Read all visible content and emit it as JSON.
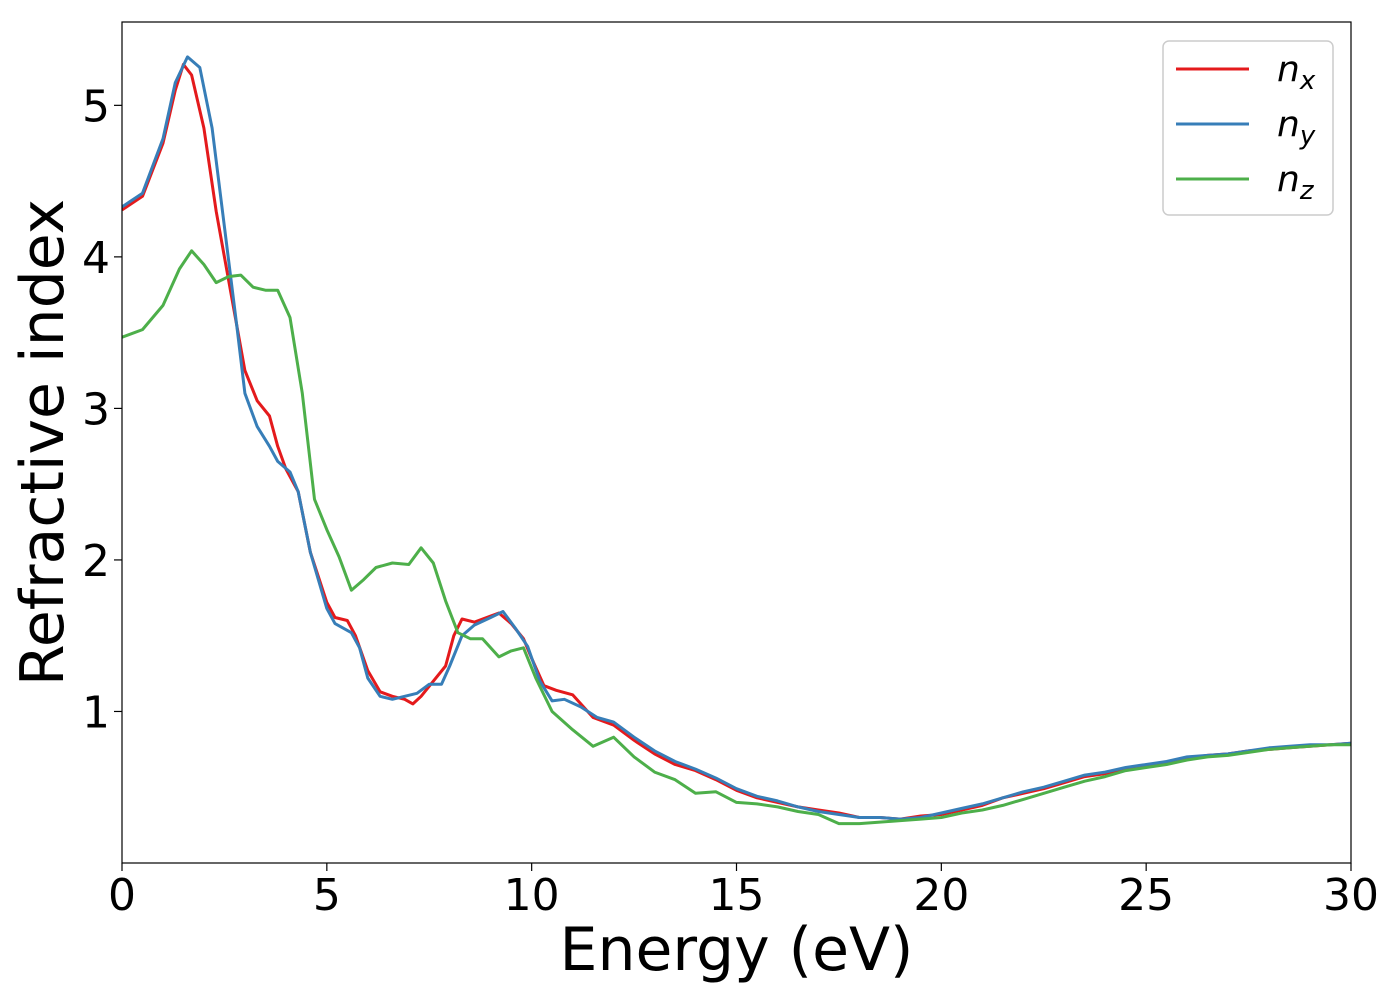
{
  "chart_data": {
    "type": "line",
    "xlabel": "Energy (eV)",
    "ylabel": "Refractive index",
    "xlim": [
      0,
      30
    ],
    "ylim": [
      0,
      5.55
    ],
    "xticks": [
      0,
      5,
      10,
      15,
      20,
      25,
      30
    ],
    "xtick_labels": [
      "0",
      "5",
      "10",
      "15",
      "20",
      "25",
      "30"
    ],
    "yticks": [
      1,
      2,
      3,
      4,
      5
    ],
    "ytick_labels": [
      "1",
      "2",
      "3",
      "4",
      "5"
    ],
    "grid": false,
    "legend": {
      "position": "top-right"
    },
    "series": [
      {
        "name": "n",
        "subscript": "x",
        "color": "#e41a1c",
        "points": [
          [
            0,
            4.31
          ],
          [
            0.5,
            4.4
          ],
          [
            1.0,
            4.75
          ],
          [
            1.3,
            5.1
          ],
          [
            1.5,
            5.27
          ],
          [
            1.7,
            5.2
          ],
          [
            2.0,
            4.85
          ],
          [
            2.3,
            4.3
          ],
          [
            2.7,
            3.7
          ],
          [
            3.0,
            3.25
          ],
          [
            3.3,
            3.05
          ],
          [
            3.6,
            2.95
          ],
          [
            3.8,
            2.75
          ],
          [
            4.0,
            2.6
          ],
          [
            4.3,
            2.45
          ],
          [
            4.6,
            2.05
          ],
          [
            5.0,
            1.72
          ],
          [
            5.2,
            1.62
          ],
          [
            5.5,
            1.6
          ],
          [
            5.7,
            1.5
          ],
          [
            6.0,
            1.27
          ],
          [
            6.3,
            1.13
          ],
          [
            6.6,
            1.1
          ],
          [
            6.9,
            1.08
          ],
          [
            7.1,
            1.05
          ],
          [
            7.3,
            1.1
          ],
          [
            7.6,
            1.2
          ],
          [
            7.9,
            1.3
          ],
          [
            8.1,
            1.5
          ],
          [
            8.3,
            1.61
          ],
          [
            8.6,
            1.59
          ],
          [
            9.0,
            1.63
          ],
          [
            9.2,
            1.65
          ],
          [
            9.5,
            1.58
          ],
          [
            9.8,
            1.48
          ],
          [
            10.0,
            1.35
          ],
          [
            10.3,
            1.17
          ],
          [
            10.6,
            1.14
          ],
          [
            11.0,
            1.11
          ],
          [
            11.5,
            0.96
          ],
          [
            12.0,
            0.91
          ],
          [
            12.5,
            0.81
          ],
          [
            13.0,
            0.72
          ],
          [
            13.5,
            0.65
          ],
          [
            14.0,
            0.61
          ],
          [
            14.5,
            0.55
          ],
          [
            15.0,
            0.48
          ],
          [
            15.5,
            0.43
          ],
          [
            16.0,
            0.4
          ],
          [
            16.5,
            0.37
          ],
          [
            17.0,
            0.35
          ],
          [
            17.5,
            0.33
          ],
          [
            18.0,
            0.3
          ],
          [
            18.5,
            0.3
          ],
          [
            19.0,
            0.29
          ],
          [
            19.5,
            0.31
          ],
          [
            20.0,
            0.32
          ],
          [
            20.5,
            0.35
          ],
          [
            21.0,
            0.38
          ],
          [
            21.5,
            0.43
          ],
          [
            22.0,
            0.46
          ],
          [
            22.5,
            0.49
          ],
          [
            23.0,
            0.53
          ],
          [
            23.5,
            0.57
          ],
          [
            24.0,
            0.59
          ],
          [
            24.5,
            0.62
          ],
          [
            25.0,
            0.64
          ],
          [
            25.5,
            0.66
          ],
          [
            26.0,
            0.69
          ],
          [
            26.5,
            0.71
          ],
          [
            27.0,
            0.72
          ],
          [
            27.5,
            0.74
          ],
          [
            28.0,
            0.75
          ],
          [
            28.5,
            0.76
          ],
          [
            29.0,
            0.77
          ],
          [
            29.5,
            0.78
          ],
          [
            30.0,
            0.79
          ]
        ]
      },
      {
        "name": "n",
        "subscript": "y",
        "color": "#377eb8",
        "points": [
          [
            0,
            4.33
          ],
          [
            0.5,
            4.42
          ],
          [
            1.0,
            4.78
          ],
          [
            1.3,
            5.15
          ],
          [
            1.6,
            5.32
          ],
          [
            1.9,
            5.25
          ],
          [
            2.2,
            4.85
          ],
          [
            2.5,
            4.2
          ],
          [
            2.8,
            3.55
          ],
          [
            3.0,
            3.1
          ],
          [
            3.3,
            2.88
          ],
          [
            3.6,
            2.75
          ],
          [
            3.8,
            2.65
          ],
          [
            4.1,
            2.58
          ],
          [
            4.3,
            2.45
          ],
          [
            4.6,
            2.05
          ],
          [
            5.0,
            1.68
          ],
          [
            5.2,
            1.58
          ],
          [
            5.6,
            1.52
          ],
          [
            5.8,
            1.42
          ],
          [
            6.0,
            1.22
          ],
          [
            6.3,
            1.1
          ],
          [
            6.6,
            1.08
          ],
          [
            6.9,
            1.1
          ],
          [
            7.2,
            1.12
          ],
          [
            7.5,
            1.18
          ],
          [
            7.8,
            1.18
          ],
          [
            8.0,
            1.3
          ],
          [
            8.3,
            1.5
          ],
          [
            8.6,
            1.57
          ],
          [
            9.0,
            1.62
          ],
          [
            9.3,
            1.66
          ],
          [
            9.6,
            1.55
          ],
          [
            9.9,
            1.43
          ],
          [
            10.2,
            1.2
          ],
          [
            10.5,
            1.07
          ],
          [
            10.8,
            1.08
          ],
          [
            11.2,
            1.03
          ],
          [
            11.6,
            0.96
          ],
          [
            12.0,
            0.93
          ],
          [
            12.5,
            0.83
          ],
          [
            13.0,
            0.74
          ],
          [
            13.5,
            0.67
          ],
          [
            14.0,
            0.62
          ],
          [
            14.5,
            0.56
          ],
          [
            15.0,
            0.49
          ],
          [
            15.5,
            0.44
          ],
          [
            16.0,
            0.41
          ],
          [
            16.5,
            0.37
          ],
          [
            17.0,
            0.34
          ],
          [
            17.5,
            0.32
          ],
          [
            18.0,
            0.3
          ],
          [
            18.5,
            0.3
          ],
          [
            19.0,
            0.29
          ],
          [
            19.5,
            0.3
          ],
          [
            20.0,
            0.33
          ],
          [
            20.5,
            0.36
          ],
          [
            21.0,
            0.39
          ],
          [
            21.5,
            0.43
          ],
          [
            22.0,
            0.47
          ],
          [
            22.5,
            0.5
          ],
          [
            23.0,
            0.54
          ],
          [
            23.5,
            0.58
          ],
          [
            24.0,
            0.6
          ],
          [
            24.5,
            0.63
          ],
          [
            25.0,
            0.65
          ],
          [
            25.5,
            0.67
          ],
          [
            26.0,
            0.7
          ],
          [
            26.5,
            0.71
          ],
          [
            27.0,
            0.72
          ],
          [
            27.5,
            0.74
          ],
          [
            28.0,
            0.76
          ],
          [
            28.5,
            0.77
          ],
          [
            29.0,
            0.78
          ],
          [
            29.5,
            0.78
          ],
          [
            30.0,
            0.79
          ]
        ]
      },
      {
        "name": "n",
        "subscript": "z",
        "color": "#4daf4a",
        "points": [
          [
            0,
            3.47
          ],
          [
            0.5,
            3.52
          ],
          [
            1.0,
            3.68
          ],
          [
            1.4,
            3.92
          ],
          [
            1.7,
            4.04
          ],
          [
            2.0,
            3.95
          ],
          [
            2.3,
            3.83
          ],
          [
            2.6,
            3.87
          ],
          [
            2.9,
            3.88
          ],
          [
            3.2,
            3.8
          ],
          [
            3.5,
            3.78
          ],
          [
            3.8,
            3.78
          ],
          [
            4.1,
            3.6
          ],
          [
            4.4,
            3.1
          ],
          [
            4.7,
            2.4
          ],
          [
            5.0,
            2.2
          ],
          [
            5.3,
            2.02
          ],
          [
            5.6,
            1.8
          ],
          [
            5.9,
            1.87
          ],
          [
            6.2,
            1.95
          ],
          [
            6.6,
            1.98
          ],
          [
            7.0,
            1.97
          ],
          [
            7.3,
            2.08
          ],
          [
            7.6,
            1.98
          ],
          [
            7.9,
            1.73
          ],
          [
            8.2,
            1.52
          ],
          [
            8.5,
            1.48
          ],
          [
            8.8,
            1.48
          ],
          [
            9.2,
            1.36
          ],
          [
            9.5,
            1.4
          ],
          [
            9.8,
            1.42
          ],
          [
            10.1,
            1.22
          ],
          [
            10.5,
            1.0
          ],
          [
            11.0,
            0.88
          ],
          [
            11.5,
            0.77
          ],
          [
            12.0,
            0.83
          ],
          [
            12.5,
            0.7
          ],
          [
            13.0,
            0.6
          ],
          [
            13.5,
            0.55
          ],
          [
            14.0,
            0.46
          ],
          [
            14.5,
            0.47
          ],
          [
            15.0,
            0.4
          ],
          [
            15.5,
            0.39
          ],
          [
            16.0,
            0.37
          ],
          [
            16.5,
            0.34
          ],
          [
            17.0,
            0.32
          ],
          [
            17.5,
            0.26
          ],
          [
            18.0,
            0.26
          ],
          [
            18.5,
            0.27
          ],
          [
            19.0,
            0.28
          ],
          [
            19.5,
            0.29
          ],
          [
            20.0,
            0.3
          ],
          [
            20.5,
            0.33
          ],
          [
            21.0,
            0.35
          ],
          [
            21.5,
            0.38
          ],
          [
            22.0,
            0.42
          ],
          [
            22.5,
            0.46
          ],
          [
            23.0,
            0.5
          ],
          [
            23.5,
            0.54
          ],
          [
            24.0,
            0.57
          ],
          [
            24.5,
            0.61
          ],
          [
            25.0,
            0.63
          ],
          [
            25.5,
            0.65
          ],
          [
            26.0,
            0.68
          ],
          [
            26.5,
            0.7
          ],
          [
            27.0,
            0.71
          ],
          [
            27.5,
            0.73
          ],
          [
            28.0,
            0.75
          ],
          [
            28.5,
            0.76
          ],
          [
            29.0,
            0.77
          ],
          [
            29.5,
            0.78
          ],
          [
            30.0,
            0.78
          ]
        ]
      }
    ]
  }
}
